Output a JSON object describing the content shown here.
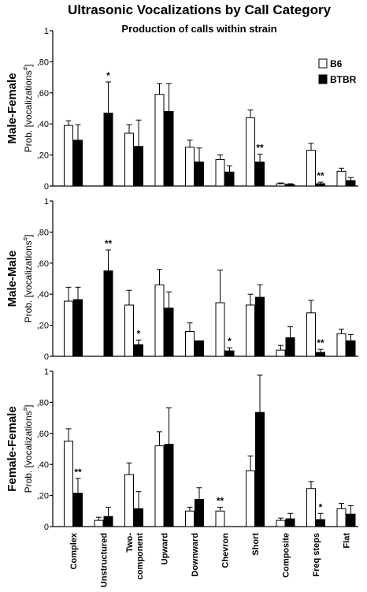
{
  "chart_data": {
    "type": "bar",
    "title": "Ultrasonic Vocalizations by Call Category",
    "subtitle": "Production of calls within strain",
    "categories": [
      "Complex",
      "Unstructured",
      "Two-\ncomponent",
      "Upward",
      "Downward",
      "Chevron",
      "Short",
      "Composite",
      "Freq steps",
      "Flat"
    ],
    "legend": {
      "placement": "top-right",
      "entries": [
        {
          "name": "B6",
          "color": "#ffffff"
        },
        {
          "name": "BTBR",
          "color": "#000000"
        }
      ]
    },
    "ylim": [
      0,
      1
    ],
    "yticks": [
      "0",
      ",20",
      ",40",
      ",60",
      ",80",
      "1"
    ],
    "ylabel_prefix": "Prob. [vocalizations",
    "ylabel_sup": "#",
    "ylabel_suffix": "]",
    "colors": {
      "b6": "#ffffff",
      "btbr": "#000000",
      "stroke": "#000000"
    },
    "panels": [
      {
        "label": "Male-Female",
        "series": [
          {
            "name": "B6",
            "values": [
              0.39,
              0.0,
              0.34,
              0.59,
              0.25,
              0.17,
              0.44,
              0.015,
              0.23,
              0.095
            ],
            "errors": [
              0.03,
              0.0,
              0.055,
              0.07,
              0.045,
              0.03,
              0.05,
              0.005,
              0.045,
              0.02
            ]
          },
          {
            "name": "BTBR",
            "values": [
              0.295,
              0.47,
              0.255,
              0.48,
              0.155,
              0.09,
              0.155,
              0.01,
              0.015,
              0.035
            ],
            "errors": [
              0.1,
              0.2,
              0.17,
              0.18,
              0.09,
              0.04,
              0.05,
              0.005,
              0.01,
              0.02
            ]
          }
        ],
        "significance": [
          {
            "category": "Unstructured",
            "bar": "BTBR",
            "text": "*"
          },
          {
            "category": "Short",
            "bar": "BTBR",
            "text": "**"
          },
          {
            "category": "Freq steps",
            "bar": "BTBR",
            "text": "**"
          }
        ]
      },
      {
        "label": "Male-Male",
        "series": [
          {
            "name": "B6",
            "values": [
              0.355,
              0.0,
              0.33,
              0.46,
              0.16,
              0.345,
              0.33,
              0.04,
              0.28,
              0.145
            ],
            "errors": [
              0.09,
              0.0,
              0.095,
              0.1,
              0.055,
              0.21,
              0.07,
              0.03,
              0.08,
              0.03
            ]
          },
          {
            "name": "BTBR",
            "values": [
              0.365,
              0.55,
              0.075,
              0.31,
              0.1,
              0.035,
              0.38,
              0.12,
              0.025,
              0.1
            ],
            "errors": [
              0.08,
              0.135,
              0.03,
              0.105,
              0.0,
              0.02,
              0.08,
              0.07,
              0.02,
              0.04
            ]
          }
        ],
        "significance": [
          {
            "category": "Unstructured",
            "bar": "BTBR",
            "text": "**"
          },
          {
            "category": "Two-\ncomponent",
            "bar": "BTBR",
            "text": "*"
          },
          {
            "category": "Chevron",
            "bar": "BTBR",
            "text": "*"
          },
          {
            "category": "Freq steps",
            "bar": "BTBR",
            "text": "**"
          }
        ]
      },
      {
        "label": "Female-Female",
        "series": [
          {
            "name": "B6",
            "values": [
              0.55,
              0.04,
              0.335,
              0.52,
              0.1,
              0.1,
              0.36,
              0.04,
              0.245,
              0.115
            ],
            "errors": [
              0.08,
              0.02,
              0.075,
              0.09,
              0.025,
              0.025,
              0.095,
              0.015,
              0.045,
              0.035
            ]
          },
          {
            "name": "BTBR",
            "values": [
              0.215,
              0.065,
              0.115,
              0.53,
              0.175,
              0.0,
              0.735,
              0.05,
              0.045,
              0.08
            ],
            "errors": [
              0.095,
              0.06,
              0.11,
              0.235,
              0.075,
              0.0,
              0.24,
              0.035,
              0.04,
              0.055
            ]
          }
        ],
        "significance": [
          {
            "category": "Complex",
            "bar": "BTBR",
            "text": "**"
          },
          {
            "category": "Chevron",
            "bar": "B6",
            "text": "**"
          },
          {
            "category": "Freq steps",
            "bar": "BTBR",
            "text": "*"
          }
        ]
      }
    ]
  }
}
